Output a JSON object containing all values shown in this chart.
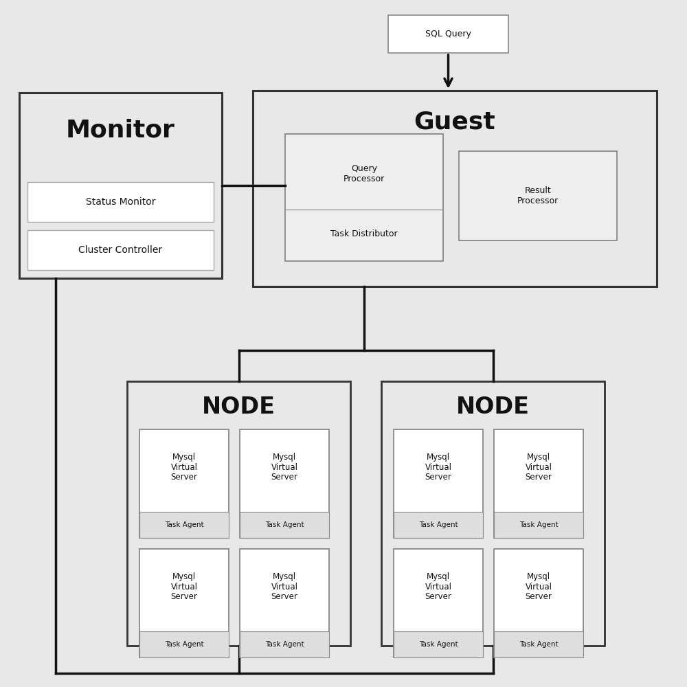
{
  "bg_color": "#e8e8e8",
  "box_face_main": "#e8e8e8",
  "box_face_white": "#ffffff",
  "box_face_node": "#e8e8e8",
  "box_edge_dark": "#333333",
  "box_edge_mid": "#888888",
  "box_edge_light": "#aaaaaa",
  "line_color": "#111111",
  "text_color": "#111111",
  "sql_label": "SQL Query",
  "guest_label": "Guest",
  "monitor_label": "Monitor",
  "status_label": "Status Monitor",
  "cluster_label": "Cluster Controller",
  "qp_label": "Query\nProcessor",
  "td_label": "Task Distributor",
  "rp_label": "Result\nProcessor",
  "node_label": "NODE",
  "mysql_label": "Mysql\nVirtual\nServer",
  "task_label": "Task Agent",
  "figsize": [
    10,
    10
  ],
  "dpi": 100
}
